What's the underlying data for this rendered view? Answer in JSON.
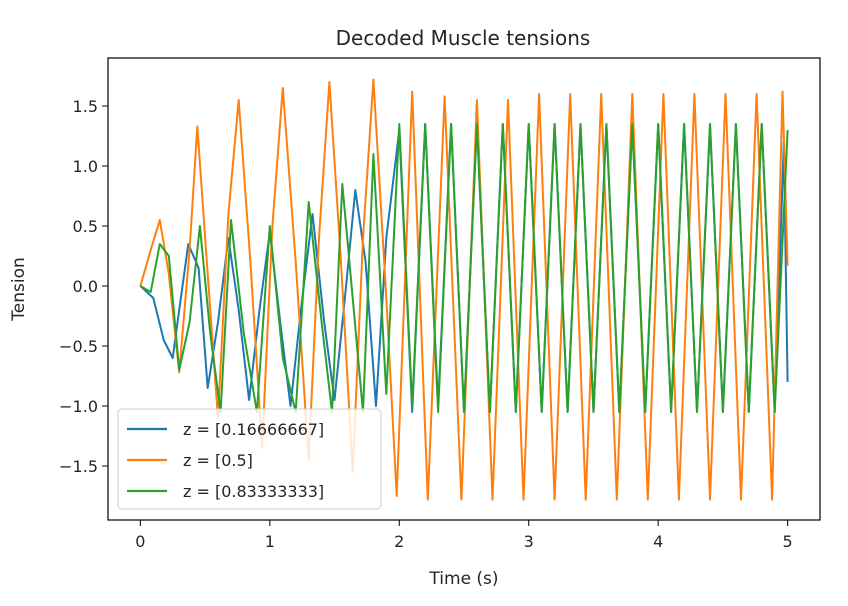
{
  "chart_data": {
    "type": "line",
    "title": "Decoded Muscle tensions",
    "xlabel": "Time (s)",
    "ylabel": "Tension",
    "xlim": [
      -0.25,
      5.25
    ],
    "ylim": [
      -1.95,
      1.9
    ],
    "xticks": [
      0,
      1,
      2,
      3,
      4,
      5
    ],
    "yticks": [
      -1.5,
      -1.0,
      -0.5,
      0.0,
      0.5,
      1.0,
      1.5
    ],
    "xtick_labels": [
      "0",
      "1",
      "2",
      "3",
      "4",
      "5"
    ],
    "ytick_labels": [
      "−1.5",
      "−1.0",
      "−0.5",
      "0.0",
      "0.5",
      "1.0",
      "1.5"
    ],
    "grid": false,
    "legend_position": "lower-left",
    "series": [
      {
        "name": "z = [0.16666667]",
        "color": "#1f77b4",
        "points": [
          [
            0,
            0
          ],
          [
            0.1,
            -0.1
          ],
          [
            0.18,
            -0.45
          ],
          [
            0.25,
            -0.6
          ],
          [
            0.3,
            -0.2
          ],
          [
            0.37,
            0.35
          ],
          [
            0.45,
            0.15
          ],
          [
            0.52,
            -0.85
          ],
          [
            0.6,
            -0.3
          ],
          [
            0.68,
            0.4
          ],
          [
            0.76,
            -0.2
          ],
          [
            0.84,
            -0.95
          ],
          [
            0.92,
            -0.2
          ],
          [
            1.0,
            0.45
          ],
          [
            1.08,
            -0.3
          ],
          [
            1.16,
            -1.0
          ],
          [
            1.24,
            -0.2
          ],
          [
            1.33,
            0.6
          ],
          [
            1.42,
            -0.3
          ],
          [
            1.5,
            -0.95
          ],
          [
            1.58,
            -0.1
          ],
          [
            1.66,
            0.8
          ],
          [
            1.74,
            0.2
          ],
          [
            1.82,
            -1.0
          ],
          [
            1.9,
            0.4
          ],
          [
            2.0,
            1.3
          ],
          [
            2.1,
            -1.05
          ],
          [
            2.2,
            1.35
          ],
          [
            2.3,
            -1.0
          ],
          [
            2.4,
            1.35
          ],
          [
            2.5,
            -1.05
          ],
          [
            2.6,
            1.35
          ],
          [
            2.7,
            -1.05
          ],
          [
            2.8,
            1.35
          ],
          [
            2.9,
            -1.05
          ],
          [
            3.0,
            1.35
          ],
          [
            3.1,
            -1.05
          ],
          [
            3.2,
            1.35
          ],
          [
            3.3,
            -1.05
          ],
          [
            3.4,
            1.35
          ],
          [
            3.5,
            -1.05
          ],
          [
            3.6,
            1.35
          ],
          [
            3.7,
            -1.05
          ],
          [
            3.8,
            1.35
          ],
          [
            3.9,
            -1.05
          ],
          [
            4.0,
            1.35
          ],
          [
            4.1,
            -1.05
          ],
          [
            4.2,
            1.35
          ],
          [
            4.3,
            -1.05
          ],
          [
            4.4,
            1.35
          ],
          [
            4.5,
            -1.05
          ],
          [
            4.6,
            1.35
          ],
          [
            4.7,
            -1.05
          ],
          [
            4.8,
            1.35
          ],
          [
            4.9,
            -1.05
          ],
          [
            4.97,
            1.2
          ],
          [
            5.0,
            -0.8
          ]
        ]
      },
      {
        "name": "z = [0.5]",
        "color": "#ff7f0e",
        "points": [
          [
            0,
            0
          ],
          [
            0.08,
            0.3
          ],
          [
            0.15,
            0.55
          ],
          [
            0.22,
            0.1
          ],
          [
            0.3,
            -0.72
          ],
          [
            0.38,
            0.3
          ],
          [
            0.44,
            1.33
          ],
          [
            0.52,
            0.1
          ],
          [
            0.6,
            -1.1
          ],
          [
            0.68,
            0.6
          ],
          [
            0.76,
            1.55
          ],
          [
            0.85,
            0.2
          ],
          [
            0.94,
            -1.35
          ],
          [
            1.02,
            0.5
          ],
          [
            1.1,
            1.65
          ],
          [
            1.2,
            0.2
          ],
          [
            1.3,
            -1.45
          ],
          [
            1.38,
            0.4
          ],
          [
            1.46,
            1.7
          ],
          [
            1.55,
            0.2
          ],
          [
            1.64,
            -1.55
          ],
          [
            1.72,
            0.4
          ],
          [
            1.8,
            1.72
          ],
          [
            1.9,
            -0.1
          ],
          [
            1.98,
            -1.75
          ],
          [
            2.1,
            1.62
          ],
          [
            2.22,
            -1.78
          ],
          [
            2.35,
            1.58
          ],
          [
            2.48,
            -1.78
          ],
          [
            2.6,
            1.55
          ],
          [
            2.72,
            -1.78
          ],
          [
            2.84,
            1.55
          ],
          [
            2.96,
            -1.78
          ],
          [
            3.08,
            1.6
          ],
          [
            3.2,
            -1.78
          ],
          [
            3.32,
            1.6
          ],
          [
            3.44,
            -1.78
          ],
          [
            3.56,
            1.6
          ],
          [
            3.68,
            -1.78
          ],
          [
            3.8,
            1.6
          ],
          [
            3.92,
            -1.78
          ],
          [
            4.04,
            1.6
          ],
          [
            4.16,
            -1.78
          ],
          [
            4.28,
            1.6
          ],
          [
            4.4,
            -1.78
          ],
          [
            4.52,
            1.6
          ],
          [
            4.64,
            -1.78
          ],
          [
            4.76,
            1.6
          ],
          [
            4.88,
            -1.78
          ],
          [
            4.96,
            1.62
          ],
          [
            5.0,
            0.17
          ]
        ]
      },
      {
        "name": "z = [0.83333333]",
        "color": "#2ca02c",
        "points": [
          [
            0,
            0
          ],
          [
            0.08,
            -0.05
          ],
          [
            0.15,
            0.35
          ],
          [
            0.22,
            0.25
          ],
          [
            0.3,
            -0.7
          ],
          [
            0.38,
            -0.3
          ],
          [
            0.46,
            0.5
          ],
          [
            0.54,
            -0.4
          ],
          [
            0.62,
            -1.05
          ],
          [
            0.7,
            0.55
          ],
          [
            0.8,
            -0.4
          ],
          [
            0.9,
            -1.05
          ],
          [
            1.0,
            0.5
          ],
          [
            1.1,
            -0.6
          ],
          [
            1.2,
            -1.05
          ],
          [
            1.3,
            0.7
          ],
          [
            1.4,
            -0.3
          ],
          [
            1.48,
            -1.05
          ],
          [
            1.56,
            0.85
          ],
          [
            1.64,
            -0.1
          ],
          [
            1.72,
            -1.05
          ],
          [
            1.8,
            1.1
          ],
          [
            1.9,
            -0.9
          ],
          [
            2.0,
            1.35
          ],
          [
            2.1,
            -1.0
          ],
          [
            2.2,
            1.35
          ],
          [
            2.3,
            -1.05
          ],
          [
            2.4,
            1.35
          ],
          [
            2.5,
            -1.05
          ],
          [
            2.6,
            1.35
          ],
          [
            2.7,
            -1.05
          ],
          [
            2.8,
            1.35
          ],
          [
            2.9,
            -1.05
          ],
          [
            3.0,
            1.35
          ],
          [
            3.1,
            -1.05
          ],
          [
            3.2,
            1.35
          ],
          [
            3.3,
            -1.05
          ],
          [
            3.4,
            1.35
          ],
          [
            3.5,
            -1.05
          ],
          [
            3.6,
            1.35
          ],
          [
            3.7,
            -1.05
          ],
          [
            3.8,
            1.35
          ],
          [
            3.9,
            -1.05
          ],
          [
            4.0,
            1.35
          ],
          [
            4.1,
            -1.05
          ],
          [
            4.2,
            1.35
          ],
          [
            4.3,
            -1.05
          ],
          [
            4.4,
            1.35
          ],
          [
            4.5,
            -1.05
          ],
          [
            4.6,
            1.35
          ],
          [
            4.7,
            -1.05
          ],
          [
            4.8,
            1.35
          ],
          [
            4.9,
            -1.05
          ],
          [
            5.0,
            1.3
          ]
        ]
      }
    ]
  }
}
